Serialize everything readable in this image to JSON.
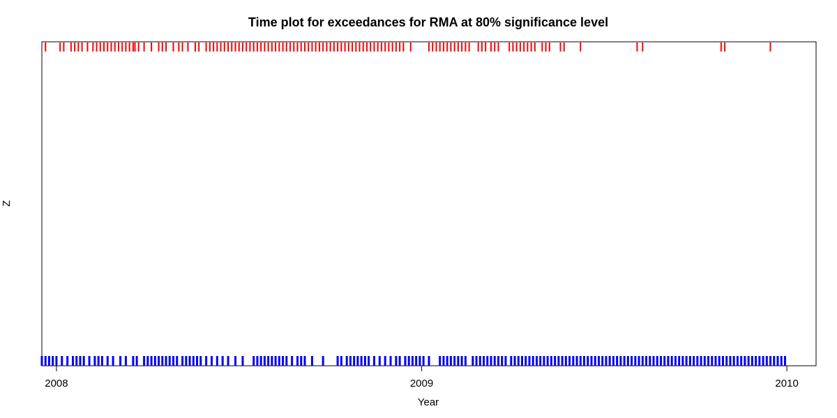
{
  "chart_data": {
    "type": "scatter",
    "title": "Time plot for exceedances for RMA at 80% significance level",
    "xlabel": "Year",
    "ylabel": "Z",
    "xlim": [
      2007.96,
      2010.08
    ],
    "grid": false,
    "legend": "none",
    "x_ticks": [
      {
        "value": 2008,
        "label": "2008"
      },
      {
        "value": 2009,
        "label": "2009"
      },
      {
        "value": 2010,
        "label": "2010"
      }
    ],
    "series": [
      {
        "color": "#ff0000",
        "level": "top",
        "x": [
          2007.97,
          2008.01,
          2008.02,
          2008.04,
          2008.05,
          2008.06,
          2008.07,
          2008.085,
          2008.1,
          2008.11,
          2008.12,
          2008.13,
          2008.14,
          2008.15,
          2008.16,
          2008.17,
          2008.18,
          2008.19,
          2008.2,
          2008.21,
          2008.215,
          2008.225,
          2008.24,
          2008.26,
          2008.28,
          2008.29,
          2008.3,
          2008.32,
          2008.335,
          2008.345,
          2008.36,
          2008.38,
          2008.39,
          2008.41,
          2008.42,
          2008.43,
          2008.44,
          2008.45,
          2008.46,
          2008.47,
          2008.48,
          2008.49,
          2008.5,
          2008.51,
          2008.52,
          2008.53,
          2008.54,
          2008.55,
          2008.56,
          2008.57,
          2008.58,
          2008.59,
          2008.6,
          2008.61,
          2008.62,
          2008.63,
          2008.64,
          2008.65,
          2008.66,
          2008.67,
          2008.68,
          2008.69,
          2008.7,
          2008.71,
          2008.72,
          2008.73,
          2008.74,
          2008.75,
          2008.76,
          2008.77,
          2008.78,
          2008.79,
          2008.8,
          2008.81,
          2008.82,
          2008.83,
          2008.84,
          2008.85,
          2008.86,
          2008.87,
          2008.88,
          2008.89,
          2008.9,
          2008.91,
          2008.92,
          2008.93,
          2008.94,
          2008.95,
          2008.97,
          2009.02,
          2009.03,
          2009.04,
          2009.05,
          2009.06,
          2009.07,
          2009.08,
          2009.09,
          2009.1,
          2009.11,
          2009.12,
          2009.13,
          2009.155,
          2009.165,
          2009.175,
          2009.19,
          2009.2,
          2009.21,
          2009.24,
          2009.25,
          2009.26,
          2009.27,
          2009.28,
          2009.29,
          2009.3,
          2009.31,
          2009.33,
          2009.34,
          2009.35,
          2009.38,
          2009.39,
          2009.435,
          2009.59,
          2009.605,
          2009.82,
          2009.83,
          2009.955
        ],
        "y": 1
      },
      {
        "color": "#0000ff",
        "level": "bottom",
        "x": [
          2007.96,
          2007.97,
          2007.98,
          2007.99,
          2008.0,
          2008.015,
          2008.03,
          2008.045,
          2008.055,
          2008.065,
          2008.075,
          2008.09,
          2008.105,
          2008.115,
          2008.125,
          2008.14,
          2008.155,
          2008.175,
          2008.19,
          2008.21,
          2008.22,
          2008.24,
          2008.25,
          2008.26,
          2008.27,
          2008.28,
          2008.29,
          2008.3,
          2008.31,
          2008.32,
          2008.33,
          2008.345,
          2008.355,
          2008.365,
          2008.375,
          2008.385,
          2008.395,
          2008.41,
          2008.425,
          2008.44,
          2008.455,
          2008.47,
          2008.49,
          2008.51,
          2008.54,
          2008.55,
          2008.56,
          2008.57,
          2008.58,
          2008.59,
          2008.6,
          2008.61,
          2008.62,
          2008.63,
          2008.645,
          2008.66,
          2008.67,
          2008.68,
          2008.7,
          2008.73,
          2008.77,
          2008.78,
          2008.795,
          2008.805,
          2008.815,
          2008.825,
          2008.835,
          2008.845,
          2008.855,
          2008.87,
          2008.885,
          2008.9,
          2008.915,
          2008.93,
          2008.94,
          2008.955,
          2008.965,
          2008.975,
          2008.985,
          2008.995,
          2009.005,
          2009.02,
          2009.05,
          2009.06,
          2009.07,
          2009.08,
          2009.09,
          2009.1,
          2009.11,
          2009.12,
          2009.14,
          2009.15,
          2009.16,
          2009.17,
          2009.18,
          2009.19,
          2009.2,
          2009.21,
          2009.22,
          2009.23,
          2009.245,
          2009.255,
          2009.265,
          2009.275,
          2009.285,
          2009.295,
          2009.305,
          2009.315,
          2009.325,
          2009.335,
          2009.345,
          2009.355,
          2009.365,
          2009.375,
          2009.385,
          2009.395,
          2009.405,
          2009.415,
          2009.425,
          2009.435,
          2009.445,
          2009.455,
          2009.465,
          2009.475,
          2009.485,
          2009.495,
          2009.505,
          2009.515,
          2009.525,
          2009.535,
          2009.545,
          2009.555,
          2009.565,
          2009.575,
          2009.585,
          2009.595,
          2009.605,
          2009.615,
          2009.625,
          2009.635,
          2009.645,
          2009.655,
          2009.665,
          2009.675,
          2009.685,
          2009.695,
          2009.705,
          2009.715,
          2009.725,
          2009.735,
          2009.745,
          2009.755,
          2009.765,
          2009.775,
          2009.785,
          2009.795,
          2009.805,
          2009.815,
          2009.825,
          2009.835,
          2009.845,
          2009.855,
          2009.865,
          2009.875,
          2009.885,
          2009.895,
          2009.905,
          2009.915,
          2009.925,
          2009.935,
          2009.945,
          2009.955,
          2009.965,
          2009.975,
          2009.985,
          2009.995
        ],
        "y": 0
      }
    ]
  }
}
